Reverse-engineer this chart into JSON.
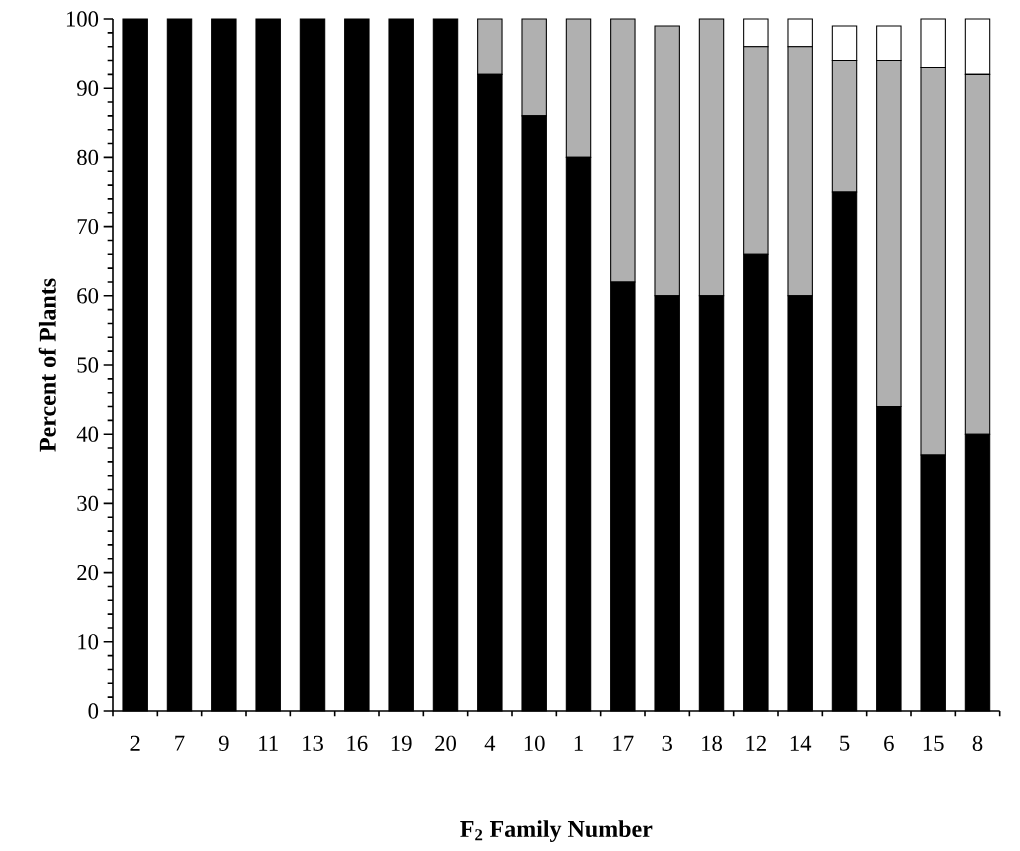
{
  "chart_data": {
    "type": "bar",
    "stacked": true,
    "xlabel": "F$_{2}$ Family Number",
    "ylabel": "Percent of Plants",
    "categories": [
      "2",
      "7",
      "9",
      "11",
      "13",
      "16",
      "19",
      "20",
      "4",
      "10",
      "1",
      "17",
      "3",
      "18",
      "12",
      "14",
      "5",
      "6",
      "15",
      "8"
    ],
    "series": [
      {
        "color": "#000000",
        "values": [
          100,
          100,
          100,
          100,
          100,
          100,
          100,
          100,
          92,
          86,
          80,
          62,
          60,
          60,
          66,
          60,
          75,
          44,
          37,
          40
        ]
      },
      {
        "color": "#b0b0b0",
        "values": [
          0,
          0,
          0,
          0,
          0,
          0,
          0,
          0,
          8,
          14,
          20,
          38,
          39,
          40,
          30,
          36,
          19,
          50,
          56,
          52
        ]
      },
      {
        "color": "#ffffff",
        "values": [
          0,
          0,
          0,
          0,
          0,
          0,
          0,
          0,
          0,
          0,
          0,
          0,
          0,
          0,
          4,
          4,
          5,
          5,
          7,
          8
        ]
      }
    ],
    "ylim": [
      0,
      100
    ],
    "yticks": [
      0,
      10,
      20,
      30,
      40,
      50,
      60,
      70,
      80,
      90,
      100
    ],
    "grid": false
  }
}
